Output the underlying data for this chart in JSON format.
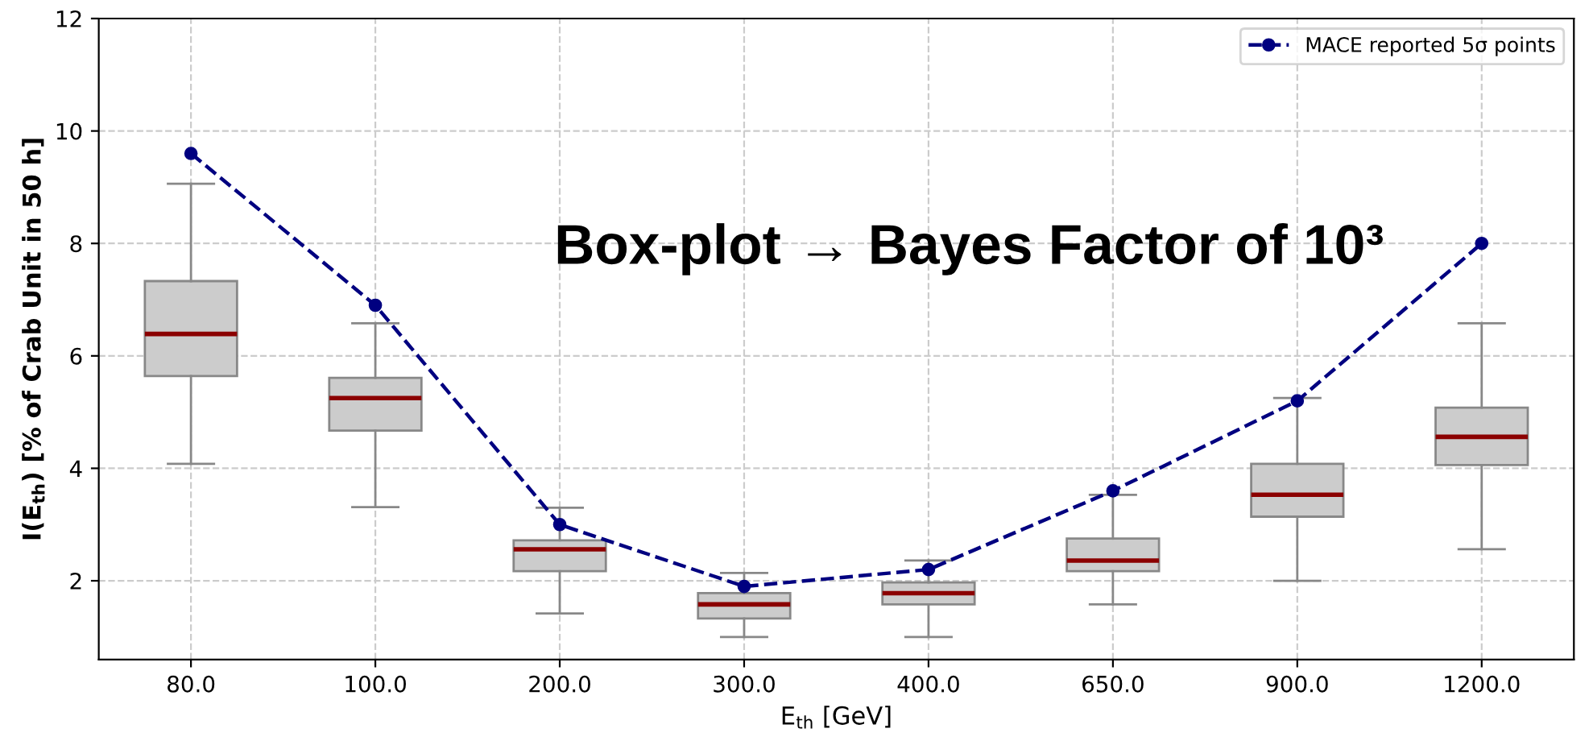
{
  "chart_data": {
    "type": "box",
    "xlabel": "E$_{th}$ [GeV]",
    "ylabel": "I(E$_{th}$) [% of Crab Unit in 50 h]",
    "categories": [
      "80.0",
      "100.0",
      "200.0",
      "300.0",
      "400.0",
      "650.0",
      "900.0",
      "1200.0"
    ],
    "boxes": [
      {
        "low": 4.08,
        "q1": 5.64,
        "median": 6.39,
        "q3": 7.33,
        "high": 9.06
      },
      {
        "low": 3.31,
        "q1": 4.67,
        "median": 5.25,
        "q3": 5.61,
        "high": 6.58
      },
      {
        "low": 1.42,
        "q1": 2.17,
        "median": 2.56,
        "q3": 2.72,
        "high": 3.3
      },
      {
        "low": 1.0,
        "q1": 1.33,
        "median": 1.58,
        "q3": 1.78,
        "high": 2.14
      },
      {
        "low": 1.0,
        "q1": 1.58,
        "median": 1.78,
        "q3": 1.97,
        "high": 2.36
      },
      {
        "low": 1.58,
        "q1": 2.17,
        "median": 2.36,
        "q3": 2.75,
        "high": 3.53
      },
      {
        "low": 2.0,
        "q1": 3.14,
        "median": 3.53,
        "q3": 4.08,
        "high": 5.25
      },
      {
        "low": 2.56,
        "q1": 4.06,
        "median": 4.56,
        "q3": 5.08,
        "high": 6.58
      }
    ],
    "color": "#cccccc",
    "series": [
      {
        "type": "line",
        "name": "MACE reported 5σ points",
        "color": "#000080",
        "values": [
          9.6,
          6.9,
          3.0,
          1.9,
          2.2,
          3.6,
          5.2,
          8.0
        ],
        "marker": "circle",
        "line_style": "dashed"
      }
    ],
    "annotations": [
      "Box-plot → Bayes Factor of 10³"
    ],
    "ylim": [
      0.6,
      12
    ],
    "yticks": [
      2,
      4,
      6,
      8,
      10,
      12
    ],
    "grid": true,
    "legend": "top right"
  }
}
